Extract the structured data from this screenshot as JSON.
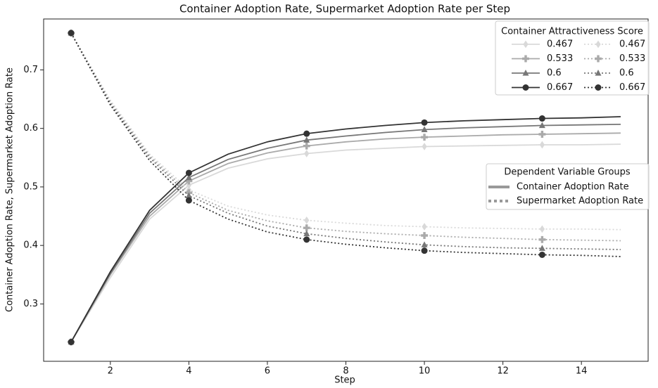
{
  "chart_data": {
    "type": "line",
    "title": "Container Adoption Rate, Supermarket Adoption Rate per Step",
    "x_label": "Step",
    "y_label": "Container Adoption Rate, Supermarket Adoption Rate",
    "x": [
      1,
      2,
      3,
      4,
      5,
      6,
      7,
      8,
      9,
      10,
      11,
      12,
      13,
      14,
      15
    ],
    "xlim": [
      0.3,
      15.7
    ],
    "xticks": [
      2,
      4,
      6,
      8,
      10,
      12,
      14
    ],
    "ylim": [
      0.202,
      0.787
    ],
    "yticks": [
      0.3,
      0.4,
      0.5,
      0.6,
      0.7
    ],
    "marker_every": 3,
    "legend_title": "Container Attractiveness Score",
    "legend_position": "upper right",
    "series": [
      {
        "name": "0.467",
        "color": "#d9d9d9",
        "linestyle": "solid",
        "marker": "diamond",
        "values": [
          0.235,
          0.345,
          0.445,
          0.503,
          0.532,
          0.548,
          0.557,
          0.563,
          0.566,
          0.569,
          0.57,
          0.571,
          0.572,
          0.572,
          0.573
        ]
      },
      {
        "name": "0.533",
        "color": "#aaaaaa",
        "linestyle": "solid",
        "marker": "plus",
        "values": [
          0.235,
          0.35,
          0.45,
          0.51,
          0.54,
          0.558,
          0.57,
          0.577,
          0.582,
          0.585,
          0.587,
          0.589,
          0.59,
          0.591,
          0.592
        ]
      },
      {
        "name": "0.6",
        "color": "#777777",
        "linestyle": "solid",
        "marker": "triangle",
        "values": [
          0.235,
          0.352,
          0.455,
          0.516,
          0.547,
          0.566,
          0.58,
          0.587,
          0.593,
          0.598,
          0.601,
          0.603,
          0.605,
          0.606,
          0.607
        ]
      },
      {
        "name": "0.667",
        "color": "#333333",
        "linestyle": "solid",
        "marker": "circle",
        "values": [
          0.235,
          0.355,
          0.46,
          0.524,
          0.556,
          0.577,
          0.591,
          0.599,
          0.605,
          0.61,
          0.613,
          0.615,
          0.617,
          0.618,
          0.62
        ]
      },
      {
        "name": "0.467",
        "color": "#d9d9d9",
        "linestyle": "dotted",
        "marker": "diamond",
        "values": [
          0.763,
          0.648,
          0.556,
          0.495,
          0.467,
          0.452,
          0.443,
          0.438,
          0.434,
          0.432,
          0.43,
          0.429,
          0.428,
          0.428,
          0.427
        ]
      },
      {
        "name": "0.533",
        "color": "#aaaaaa",
        "linestyle": "dotted",
        "marker": "plus",
        "values": [
          0.763,
          0.645,
          0.553,
          0.49,
          0.46,
          0.442,
          0.43,
          0.424,
          0.42,
          0.417,
          0.414,
          0.412,
          0.41,
          0.409,
          0.408
        ]
      },
      {
        "name": "0.6",
        "color": "#777777",
        "linestyle": "dotted",
        "marker": "triangle",
        "values": [
          0.763,
          0.643,
          0.55,
          0.485,
          0.455,
          0.433,
          0.42,
          0.412,
          0.406,
          0.401,
          0.398,
          0.396,
          0.395,
          0.394,
          0.393
        ]
      },
      {
        "name": "0.667",
        "color": "#333333",
        "linestyle": "dotted",
        "marker": "circle",
        "values": [
          0.763,
          0.64,
          0.545,
          0.477,
          0.445,
          0.423,
          0.41,
          0.402,
          0.396,
          0.391,
          0.388,
          0.386,
          0.384,
          0.383,
          0.381
        ]
      }
    ],
    "group_legend_title": "Dependent Variable Groups",
    "group_legend_color": "#999999",
    "groups": [
      {
        "name": "Container Adoption Rate",
        "linestyle": "solid"
      },
      {
        "name": "Supermarket Adoption Rate",
        "linestyle": "dotted"
      }
    ]
  }
}
